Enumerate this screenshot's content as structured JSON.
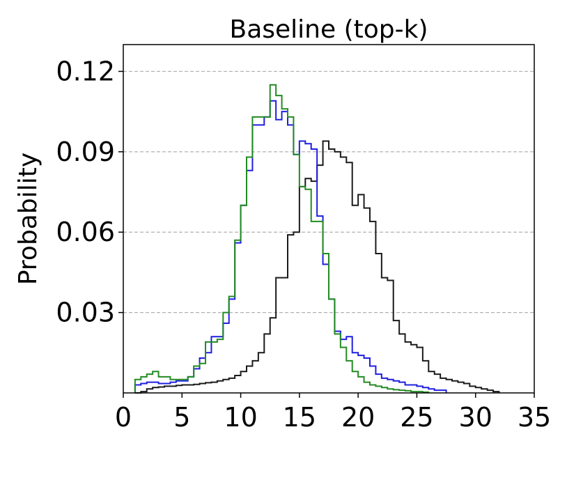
{
  "chart_data": {
    "type": "line",
    "title": "Baseline (top-k)",
    "xlabel": "",
    "ylabel": "Probability",
    "xlim": [
      0,
      35
    ],
    "ylim": [
      0,
      0.13
    ],
    "xticks": [
      0,
      5,
      10,
      15,
      20,
      25,
      30,
      35
    ],
    "xtick_labels": [
      "0",
      "5",
      "10",
      "15",
      "20",
      "25",
      "30",
      "35"
    ],
    "yticks": [
      0.03,
      0.06,
      0.09,
      0.12
    ],
    "ytick_labels": [
      "0.03",
      "0.06",
      "0.09",
      "0.12"
    ],
    "grid": "y-dashed",
    "bin_width": 0.5,
    "series": [
      {
        "color": "#1a1a1a",
        "x_start": 1,
        "values": [
          0.0,
          0.0005,
          0.0015,
          0.002,
          0.0022,
          0.0025,
          0.0025,
          0.0028,
          0.003,
          0.003,
          0.0032,
          0.0035,
          0.0038,
          0.004,
          0.0045,
          0.005,
          0.0055,
          0.0065,
          0.008,
          0.01,
          0.012,
          0.015,
          0.022,
          0.028,
          0.043,
          0.043,
          0.059,
          0.06,
          0.077,
          0.08,
          0.079,
          0.085,
          0.094,
          0.091,
          0.09,
          0.088,
          0.086,
          0.07,
          0.074,
          0.069,
          0.064,
          0.052,
          0.043,
          0.042,
          0.027,
          0.022,
          0.019,
          0.018,
          0.017,
          0.012,
          0.008,
          0.007,
          0.0055,
          0.005,
          0.0045,
          0.004,
          0.0035,
          0.0025,
          0.002,
          0.0015,
          0.001,
          0.0005
        ]
      },
      {
        "color": "#1f1fe0",
        "x_start": 1,
        "values": [
          0.003,
          0.0035,
          0.004,
          0.004,
          0.0035,
          0.0035,
          0.004,
          0.0045,
          0.0045,
          0.006,
          0.009,
          0.013,
          0.015,
          0.021,
          0.021,
          0.026,
          0.035,
          0.056,
          0.07,
          0.083,
          0.1,
          0.1,
          0.103,
          0.109,
          0.102,
          0.105,
          0.1,
          0.089,
          0.094,
          0.093,
          0.091,
          0.066,
          0.048,
          0.035,
          0.023,
          0.02,
          0.021,
          0.015,
          0.014,
          0.013,
          0.01,
          0.007,
          0.0055,
          0.005,
          0.0045,
          0.004,
          0.003,
          0.003,
          0.0025,
          0.002,
          0.0015,
          0.001,
          0.001
        ]
      },
      {
        "color": "#228b22",
        "x_start": 1,
        "values": [
          0.005,
          0.006,
          0.007,
          0.008,
          0.006,
          0.006,
          0.005,
          0.005,
          0.005,
          0.006,
          0.01,
          0.011,
          0.019,
          0.019,
          0.02,
          0.03,
          0.036,
          0.057,
          0.07,
          0.088,
          0.103,
          0.103,
          0.103,
          0.115,
          0.111,
          0.106,
          0.103,
          0.089,
          0.077,
          0.076,
          0.064,
          0.064,
          0.052,
          0.035,
          0.022,
          0.017,
          0.012,
          0.008,
          0.006,
          0.004,
          0.003,
          0.0025,
          0.002,
          0.0015,
          0.0012,
          0.001,
          0.0008,
          0.0005,
          0.0005,
          0.0003
        ]
      }
    ]
  }
}
